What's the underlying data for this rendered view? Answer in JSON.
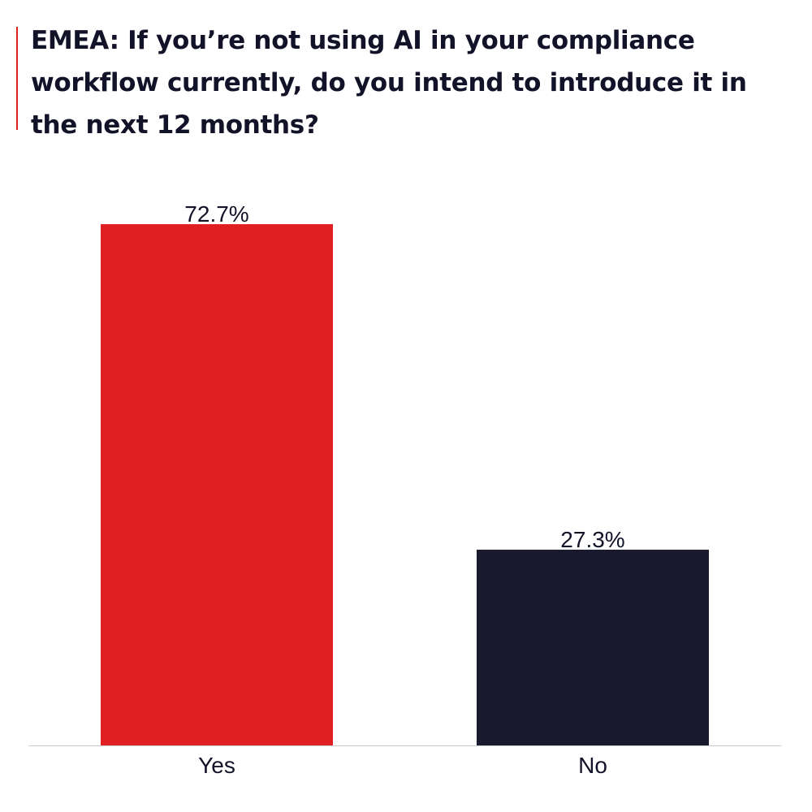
{
  "chart_data": {
    "type": "bar",
    "title": "EMEA: If you’re not using AI in your compliance workflow currently, do you intend to introduce it in the next 12 months?",
    "categories": [
      "Yes",
      "No"
    ],
    "values": [
      72.7,
      27.3
    ],
    "value_labels": [
      "72.7%",
      "27.3%"
    ],
    "bar_colors": [
      "#e01f22",
      "#1a1a2e"
    ],
    "ylim": [
      0,
      80
    ],
    "xlabel": "",
    "ylabel": "",
    "grid": false,
    "legend": "none"
  },
  "colors": {
    "accent": "#e01f22",
    "text": "#121228",
    "axis": "#cccccc"
  }
}
